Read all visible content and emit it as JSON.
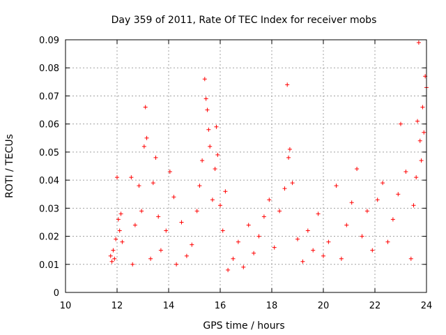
{
  "chart_data": {
    "type": "scatter",
    "title": "Day 359 of 2011, Rate Of TEC Index for receiver mobs",
    "xlabel": "GPS time / hours",
    "ylabel": "ROTI / TECUs",
    "xlim": [
      10,
      24
    ],
    "ylim": [
      0,
      0.09
    ],
    "xticks": [
      10,
      12,
      14,
      16,
      18,
      20,
      22,
      24
    ],
    "yticks": [
      0,
      0.01,
      0.02,
      0.03,
      0.04,
      0.05,
      0.06,
      0.07,
      0.08,
      0.09
    ],
    "xtick_labels": [
      "10",
      "12",
      "14",
      "16",
      "18",
      "20",
      "22",
      "24"
    ],
    "ytick_labels": [
      "0",
      "0.01",
      "0.02",
      "0.03",
      "0.04",
      "0.05",
      "0.06",
      "0.07",
      "0.08",
      "0.09"
    ],
    "grid": true,
    "marker": "+",
    "color": "#ff0000",
    "series": [
      {
        "name": "ROTI",
        "points": [
          [
            11.75,
            0.013
          ],
          [
            11.8,
            0.011
          ],
          [
            11.85,
            0.015
          ],
          [
            11.9,
            0.012
          ],
          [
            11.95,
            0.019
          ],
          [
            12.0,
            0.041
          ],
          [
            12.05,
            0.026
          ],
          [
            12.1,
            0.022
          ],
          [
            12.15,
            0.028
          ],
          [
            12.2,
            0.018
          ],
          [
            12.55,
            0.041
          ],
          [
            12.6,
            0.01
          ],
          [
            12.7,
            0.024
          ],
          [
            12.85,
            0.038
          ],
          [
            12.95,
            0.029
          ],
          [
            13.05,
            0.052
          ],
          [
            13.1,
            0.066
          ],
          [
            13.15,
            0.055
          ],
          [
            13.3,
            0.012
          ],
          [
            13.4,
            0.039
          ],
          [
            13.5,
            0.048
          ],
          [
            13.6,
            0.027
          ],
          [
            13.7,
            0.015
          ],
          [
            13.9,
            0.022
          ],
          [
            14.05,
            0.043
          ],
          [
            14.2,
            0.034
          ],
          [
            14.3,
            0.01
          ],
          [
            14.5,
            0.025
          ],
          [
            14.7,
            0.013
          ],
          [
            14.9,
            0.017
          ],
          [
            15.1,
            0.029
          ],
          [
            15.2,
            0.038
          ],
          [
            15.3,
            0.047
          ],
          [
            15.4,
            0.076
          ],
          [
            15.45,
            0.069
          ],
          [
            15.5,
            0.065
          ],
          [
            15.55,
            0.058
          ],
          [
            15.6,
            0.052
          ],
          [
            15.7,
            0.033
          ],
          [
            15.8,
            0.044
          ],
          [
            15.85,
            0.059
          ],
          [
            15.9,
            0.049
          ],
          [
            16.0,
            0.031
          ],
          [
            16.1,
            0.022
          ],
          [
            16.2,
            0.036
          ],
          [
            16.3,
            0.008
          ],
          [
            16.5,
            0.012
          ],
          [
            16.7,
            0.018
          ],
          [
            16.9,
            0.009
          ],
          [
            17.1,
            0.024
          ],
          [
            17.3,
            0.014
          ],
          [
            17.5,
            0.02
          ],
          [
            17.7,
            0.027
          ],
          [
            17.9,
            0.033
          ],
          [
            18.1,
            0.016
          ],
          [
            18.3,
            0.029
          ],
          [
            18.5,
            0.037
          ],
          [
            18.6,
            0.074
          ],
          [
            18.65,
            0.048
          ],
          [
            18.7,
            0.051
          ],
          [
            18.8,
            0.039
          ],
          [
            19.0,
            0.019
          ],
          [
            19.2,
            0.011
          ],
          [
            19.4,
            0.022
          ],
          [
            19.6,
            0.015
          ],
          [
            19.8,
            0.028
          ],
          [
            20.0,
            0.013
          ],
          [
            20.2,
            0.018
          ],
          [
            20.5,
            0.038
          ],
          [
            20.7,
            0.012
          ],
          [
            20.9,
            0.024
          ],
          [
            21.1,
            0.032
          ],
          [
            21.3,
            0.044
          ],
          [
            21.5,
            0.02
          ],
          [
            21.7,
            0.029
          ],
          [
            21.9,
            0.015
          ],
          [
            22.1,
            0.033
          ],
          [
            22.3,
            0.039
          ],
          [
            22.5,
            0.018
          ],
          [
            22.7,
            0.026
          ],
          [
            22.9,
            0.035
          ],
          [
            23.0,
            0.06
          ],
          [
            23.2,
            0.043
          ],
          [
            23.4,
            0.012
          ],
          [
            23.5,
            0.031
          ],
          [
            23.6,
            0.041
          ],
          [
            23.65,
            0.061
          ],
          [
            23.7,
            0.089
          ],
          [
            23.75,
            0.054
          ],
          [
            23.8,
            0.047
          ],
          [
            23.85,
            0.066
          ],
          [
            23.9,
            0.057
          ],
          [
            23.95,
            0.077
          ],
          [
            24.0,
            0.073
          ]
        ]
      }
    ]
  }
}
